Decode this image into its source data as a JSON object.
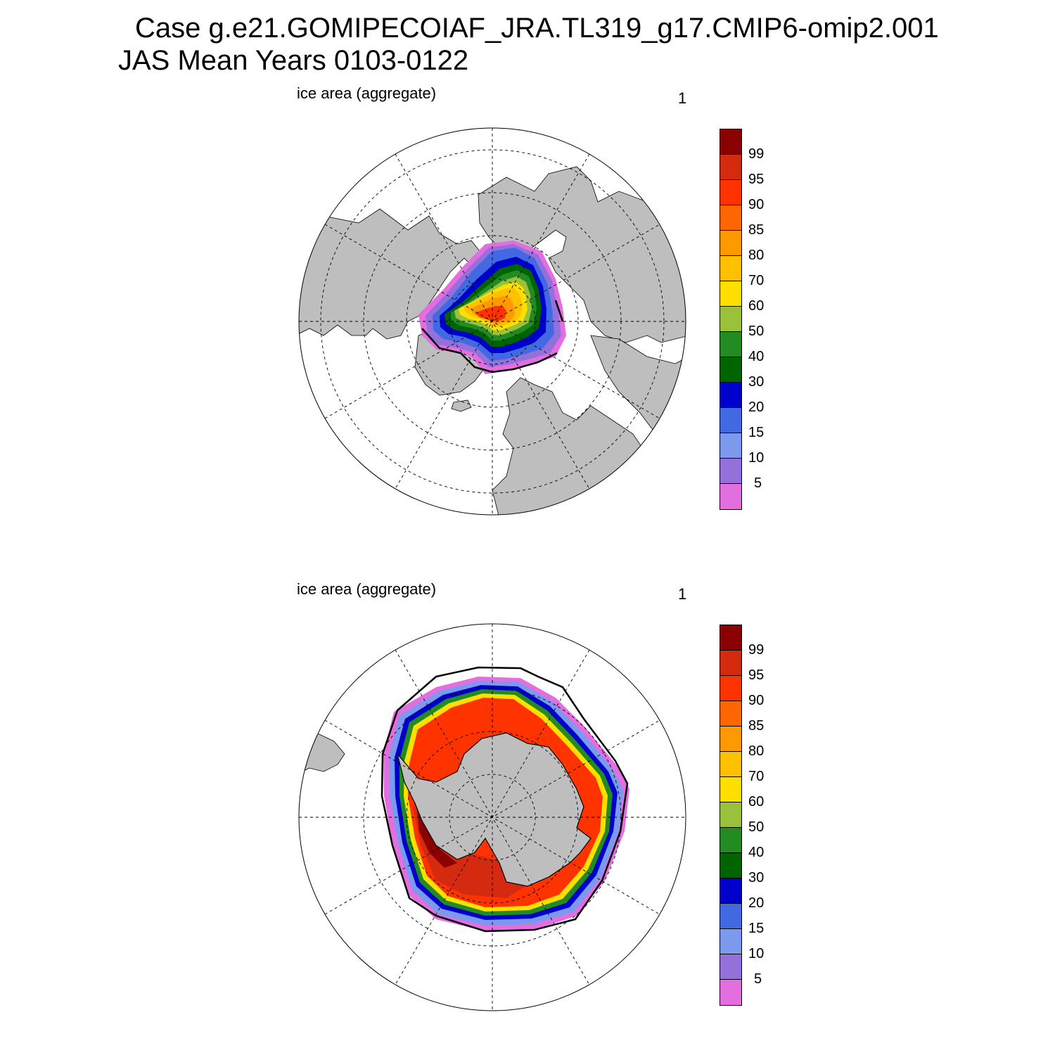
{
  "title": {
    "line1": "Case g.e21.GOMIPECOIAF_JRA.TL319_g17.CMIP6-omip2.001",
    "line2": "JAS Mean   Years 0103-0122"
  },
  "panels": [
    {
      "label": "ice area  (aggregate)",
      "number": "1",
      "hemisphere": "north"
    },
    {
      "label": "ice area  (aggregate)",
      "number": "1",
      "hemisphere": "south"
    }
  ],
  "colorbar": {
    "labels": [
      "99",
      "95",
      "90",
      "85",
      "80",
      "70",
      "60",
      "50",
      "40",
      "30",
      "20",
      "15",
      "10",
      "5"
    ],
    "colors": [
      "#8b0000",
      "#d42a10",
      "#ff3300",
      "#ff6600",
      "#ff9900",
      "#ffc000",
      "#ffdf00",
      "#99c13a",
      "#228b22",
      "#006400",
      "#0000cd",
      "#4169e1",
      "#7b9aee",
      "#9370db",
      "#e36edf"
    ]
  },
  "colors": {
    "land": "#bebebe",
    "ocean": "#ffffff",
    "edge_line": "#000000"
  }
}
